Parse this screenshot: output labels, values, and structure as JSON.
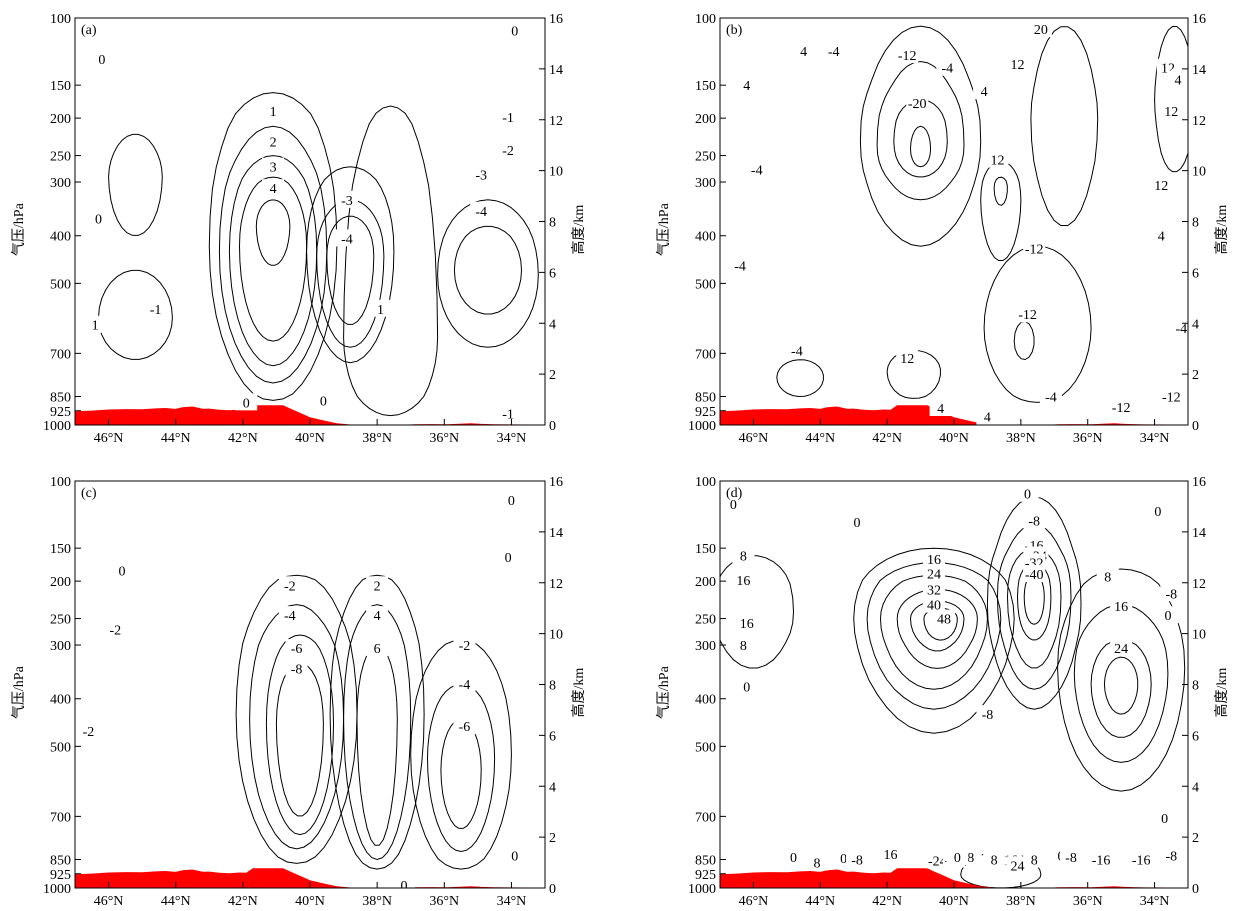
{
  "colors": {
    "terrain": "#ff0000",
    "line": "#000000",
    "background": "#ffffff"
  },
  "chart_data": [
    {
      "type": "contour",
      "panel_label": "(a)",
      "xlabel": "",
      "ylabel": "气压/hPa",
      "y2label": "高度/km",
      "xlim": [
        47,
        33
      ],
      "xticks": [
        "46°N",
        "44°N",
        "42°N",
        "40°N",
        "38°N",
        "36°N",
        "34°N"
      ],
      "xtick_values": [
        46,
        44,
        42,
        40,
        38,
        36,
        34
      ],
      "yticks": [
        "100",
        "150",
        "200",
        "250",
        "300",
        "400",
        "500",
        "700",
        "850",
        "925",
        "1000"
      ],
      "ytick_values": [
        100,
        150,
        200,
        250,
        300,
        400,
        500,
        700,
        850,
        925,
        1000
      ],
      "y2ticks": [
        "16",
        "14",
        "12",
        "10",
        "8",
        "6",
        "4",
        "2",
        "0"
      ],
      "contour_labels": [
        {
          "text": "0",
          "lat": 33.9,
          "p": 108
        },
        {
          "text": "0",
          "lat": 46.2,
          "p": 128
        },
        {
          "text": "0",
          "lat": 46.3,
          "p": 365
        },
        {
          "text": "1",
          "lat": 41.1,
          "p": 188
        },
        {
          "text": "2",
          "lat": 41.1,
          "p": 230
        },
        {
          "text": "3",
          "lat": 41.1,
          "p": 270
        },
        {
          "text": "4",
          "lat": 41.1,
          "p": 310
        },
        {
          "text": "-1",
          "lat": 34.1,
          "p": 198
        },
        {
          "text": "-2",
          "lat": 34.1,
          "p": 242
        },
        {
          "text": "-3",
          "lat": 34.9,
          "p": 285
        },
        {
          "text": "-3",
          "lat": 38.9,
          "p": 330
        },
        {
          "text": "-4",
          "lat": 38.9,
          "p": 405
        },
        {
          "text": "-4",
          "lat": 34.9,
          "p": 350
        },
        {
          "text": "-1",
          "lat": 44.6,
          "p": 565
        },
        {
          "text": "1",
          "lat": 37.9,
          "p": 565
        },
        {
          "text": "0",
          "lat": 41.9,
          "p": 880
        },
        {
          "text": "0",
          "lat": 39.6,
          "p": 870
        },
        {
          "text": "-1",
          "lat": 34.1,
          "p": 940
        },
        {
          "text": "1",
          "lat": 46.4,
          "p": 610
        }
      ]
    },
    {
      "type": "contour",
      "panel_label": "(b)",
      "xlabel": "",
      "ylabel": "气压/hPa",
      "y2label": "高度/km",
      "xlim": [
        47,
        33
      ],
      "xticks": [
        "46°N",
        "44°N",
        "42°N",
        "40°N",
        "38°N",
        "36°N",
        "34°N"
      ],
      "xtick_values": [
        46,
        44,
        42,
        40,
        38,
        36,
        34
      ],
      "yticks": [
        "100",
        "150",
        "200",
        "250",
        "300",
        "400",
        "500",
        "700",
        "850",
        "925",
        "1000"
      ],
      "ytick_values": [
        100,
        150,
        200,
        250,
        300,
        400,
        500,
        700,
        850,
        925,
        1000
      ],
      "y2ticks": [
        "16",
        "14",
        "12",
        "10",
        "8",
        "6",
        "4",
        "2",
        "0"
      ],
      "contour_labels": [
        {
          "text": "4",
          "lat": 44.5,
          "p": 122
        },
        {
          "text": "-4",
          "lat": 43.6,
          "p": 122
        },
        {
          "text": "-12",
          "lat": 41.4,
          "p": 125
        },
        {
          "text": "-4",
          "lat": 40.2,
          "p": 135
        },
        {
          "text": "20",
          "lat": 37.4,
          "p": 107
        },
        {
          "text": "12",
          "lat": 38.1,
          "p": 132
        },
        {
          "text": "4",
          "lat": 39.1,
          "p": 158
        },
        {
          "text": "12",
          "lat": 33.6,
          "p": 135
        },
        {
          "text": "4",
          "lat": 33.3,
          "p": 145
        },
        {
          "text": "12",
          "lat": 33.5,
          "p": 188
        },
        {
          "text": "4",
          "lat": 46.2,
          "p": 150
        },
        {
          "text": "-20",
          "lat": 41.1,
          "p": 175
        },
        {
          "text": "12",
          "lat": 38.7,
          "p": 257
        },
        {
          "text": "-4",
          "lat": 45.9,
          "p": 275
        },
        {
          "text": "12",
          "lat": 33.8,
          "p": 305
        },
        {
          "text": "4",
          "lat": 33.8,
          "p": 400
        },
        {
          "text": "-12",
          "lat": 37.6,
          "p": 425
        },
        {
          "text": "-4",
          "lat": 46.4,
          "p": 460
        },
        {
          "text": "-12",
          "lat": 37.8,
          "p": 580
        },
        {
          "text": "-4",
          "lat": 33.2,
          "p": 620
        },
        {
          "text": "-4",
          "lat": 44.7,
          "p": 690
        },
        {
          "text": "12",
          "lat": 41.4,
          "p": 715
        },
        {
          "text": "-4",
          "lat": 37.1,
          "p": 850
        },
        {
          "text": "-12",
          "lat": 33.5,
          "p": 850
        },
        {
          "text": "-12",
          "lat": 35.0,
          "p": 905
        },
        {
          "text": "4",
          "lat": 40.4,
          "p": 910
        },
        {
          "text": "4",
          "lat": 39.0,
          "p": 955
        }
      ]
    },
    {
      "type": "contour",
      "panel_label": "(c)",
      "xlabel": "",
      "ylabel": "气压/hPa",
      "y2label": "高度/km",
      "xlim": [
        47,
        33
      ],
      "xticks": [
        "46°N",
        "44°N",
        "42°N",
        "40°N",
        "38°N",
        "36°N",
        "34°N"
      ],
      "xtick_values": [
        46,
        44,
        42,
        40,
        38,
        36,
        34
      ],
      "yticks": [
        "100",
        "150",
        "200",
        "250",
        "300",
        "400",
        "500",
        "700",
        "850",
        "925",
        "1000"
      ],
      "ytick_values": [
        100,
        150,
        200,
        250,
        300,
        400,
        500,
        700,
        850,
        925,
        1000
      ],
      "y2ticks": [
        "16",
        "14",
        "12",
        "10",
        "8",
        "6",
        "4",
        "2",
        "0"
      ],
      "contour_labels": [
        {
          "text": "0",
          "lat": 34.0,
          "p": 112
        },
        {
          "text": "0",
          "lat": 34.1,
          "p": 162
        },
        {
          "text": "0",
          "lat": 45.6,
          "p": 182
        },
        {
          "text": "-2",
          "lat": 45.8,
          "p": 270
        },
        {
          "text": "-2",
          "lat": 46.6,
          "p": 465
        },
        {
          "text": "-2",
          "lat": 40.6,
          "p": 205
        },
        {
          "text": "-4",
          "lat": 40.6,
          "p": 245
        },
        {
          "text": "-6",
          "lat": 40.4,
          "p": 305
        },
        {
          "text": "-8",
          "lat": 40.4,
          "p": 340
        },
        {
          "text": "2",
          "lat": 38.0,
          "p": 205
        },
        {
          "text": "4",
          "lat": 38.0,
          "p": 245
        },
        {
          "text": "6",
          "lat": 38.0,
          "p": 305
        },
        {
          "text": "-2",
          "lat": 35.4,
          "p": 300
        },
        {
          "text": "-4",
          "lat": 35.4,
          "p": 370
        },
        {
          "text": "-6",
          "lat": 35.4,
          "p": 455
        },
        {
          "text": "0",
          "lat": 33.9,
          "p": 835
        },
        {
          "text": "0",
          "lat": 37.2,
          "p": 985
        }
      ]
    },
    {
      "type": "contour",
      "panel_label": "(d)",
      "xlabel": "",
      "ylabel": "气压/hPa",
      "y2label": "高度/km",
      "xlim": [
        47,
        33
      ],
      "xticks": [
        "46°N",
        "44°N",
        "42°N",
        "40°N",
        "38°N",
        "36°N",
        "34°N"
      ],
      "xtick_values": [
        46,
        44,
        42,
        40,
        38,
        36,
        34
      ],
      "yticks": [
        "100",
        "150",
        "200",
        "250",
        "300",
        "400",
        "500",
        "700",
        "850",
        "925",
        "1000"
      ],
      "ytick_values": [
        100,
        150,
        200,
        250,
        300,
        400,
        500,
        700,
        850,
        925,
        1000
      ],
      "y2ticks": [
        "16",
        "14",
        "12",
        "10",
        "8",
        "6",
        "4",
        "2",
        "0"
      ],
      "contour_labels": [
        {
          "text": "0",
          "lat": 46.6,
          "p": 115
        },
        {
          "text": "0",
          "lat": 42.9,
          "p": 128
        },
        {
          "text": "0",
          "lat": 37.8,
          "p": 108
        },
        {
          "text": "0",
          "lat": 33.9,
          "p": 120
        },
        {
          "text": "-8",
          "lat": 37.6,
          "p": 127
        },
        {
          "text": "-16",
          "lat": 37.6,
          "p": 147
        },
        {
          "text": "-24",
          "lat": 37.5,
          "p": 160
        },
        {
          "text": "-32",
          "lat": 37.6,
          "p": 170
        },
        {
          "text": "-40",
          "lat": 37.6,
          "p": 188
        },
        {
          "text": "8",
          "lat": 46.3,
          "p": 160
        },
        {
          "text": "16",
          "lat": 46.3,
          "p": 198
        },
        {
          "text": "16",
          "lat": 46.2,
          "p": 258
        },
        {
          "text": "8",
          "lat": 46.3,
          "p": 300
        },
        {
          "text": "0",
          "lat": 46.2,
          "p": 375
        },
        {
          "text": "16",
          "lat": 40.6,
          "p": 165
        },
        {
          "text": "24",
          "lat": 40.6,
          "p": 187
        },
        {
          "text": "32",
          "lat": 40.6,
          "p": 210
        },
        {
          "text": "40",
          "lat": 40.6,
          "p": 230
        },
        {
          "text": "48",
          "lat": 40.3,
          "p": 250
        },
        {
          "text": "8",
          "lat": 35.4,
          "p": 192
        },
        {
          "text": "16",
          "lat": 35.0,
          "p": 232
        },
        {
          "text": "-8",
          "lat": 33.5,
          "p": 215
        },
        {
          "text": "0",
          "lat": 33.6,
          "p": 245
        },
        {
          "text": "24",
          "lat": 35.0,
          "p": 305
        },
        {
          "text": "-8",
          "lat": 39.0,
          "p": 430
        },
        {
          "text": "0",
          "lat": 33.7,
          "p": 705
        },
        {
          "text": "0",
          "lat": 44.8,
          "p": 840
        },
        {
          "text": "8",
          "lat": 44.1,
          "p": 865
        },
        {
          "text": "0",
          "lat": 43.3,
          "p": 845
        },
        {
          "text": "-8",
          "lat": 42.9,
          "p": 850
        },
        {
          "text": "16",
          "lat": 41.9,
          "p": 830
        },
        {
          "text": "-24",
          "lat": 40.5,
          "p": 855
        },
        {
          "text": "-16",
          "lat": 40.0,
          "p": 850
        },
        {
          "text": "8",
          "lat": 39.5,
          "p": 840
        },
        {
          "text": "0",
          "lat": 39.9,
          "p": 840
        },
        {
          "text": "8",
          "lat": 38.8,
          "p": 850
        },
        {
          "text": "16",
          "lat": 38.3,
          "p": 850
        },
        {
          "text": "24",
          "lat": 38.1,
          "p": 880
        },
        {
          "text": "8",
          "lat": 37.6,
          "p": 850
        },
        {
          "text": "0",
          "lat": 36.8,
          "p": 835
        },
        {
          "text": "-8",
          "lat": 36.5,
          "p": 840
        },
        {
          "text": "-16",
          "lat": 35.6,
          "p": 850
        },
        {
          "text": "-16",
          "lat": 34.4,
          "p": 850
        },
        {
          "text": "-8",
          "lat": 33.5,
          "p": 835
        }
      ]
    }
  ]
}
